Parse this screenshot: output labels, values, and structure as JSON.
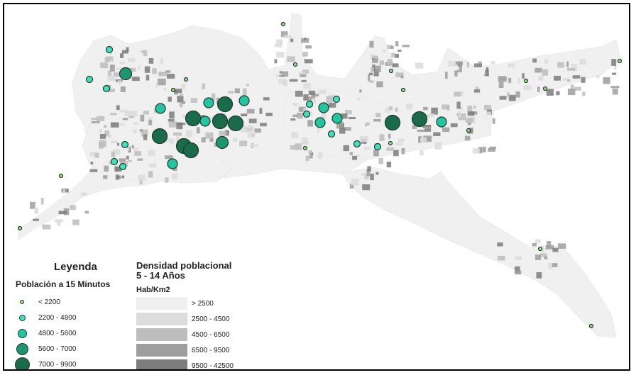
{
  "legend": {
    "title": "Leyenda",
    "circles_title": "Población a 15 Minutos",
    "density_title_line1": "Densidad poblacional",
    "density_title_line2": "5 - 14 Años",
    "density_units": "Hab/Km2"
  },
  "circle_classes": [
    {
      "label": "< 2200",
      "color": "#a8d98a"
    },
    {
      "label": "2200 - 4800",
      "color": "#3fe0bb"
    },
    {
      "label": "4800 - 5600",
      "color": "#23c4a0"
    },
    {
      "label": "5600 - 7000",
      "color": "#1e9470"
    },
    {
      "label": "7000 - 9900",
      "color": "#1a6b4c"
    }
  ],
  "density_classes": [
    {
      "label": "> 2500",
      "color": "#f0f0f0"
    },
    {
      "label": "2500 - 4500",
      "color": "#dcdcdc"
    },
    {
      "label": "4500 - 6500",
      "color": "#bdbdbd"
    },
    {
      "label": "6500 - 9500",
      "color": "#9e9e9e"
    },
    {
      "label": "9500 - 42500",
      "color": "#7d7d7d"
    }
  ]
}
